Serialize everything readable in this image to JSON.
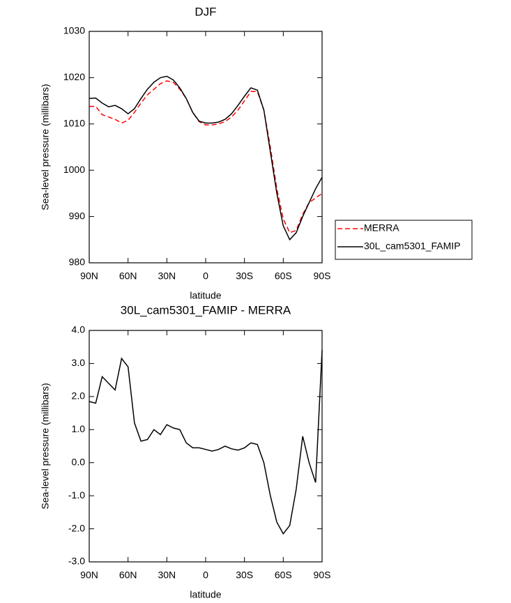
{
  "chart_data": [
    {
      "type": "line",
      "title": "DJF",
      "xlabel": "latitude",
      "ylabel": "Sea-level pressure (millibars)",
      "x": [
        90,
        85,
        80,
        75,
        70,
        65,
        60,
        55,
        50,
        45,
        40,
        35,
        30,
        25,
        20,
        15,
        10,
        5,
        0,
        -5,
        -10,
        -15,
        -20,
        -25,
        -30,
        -35,
        -40,
        -45,
        -50,
        -55,
        -60,
        -65,
        -70,
        -75,
        -80,
        -85,
        -90
      ],
      "series": [
        {
          "name": "MERRA",
          "color": "#ff0000",
          "linestyle": "dashed",
          "values": [
            1013.8,
            1013.8,
            1012,
            1011.5,
            1011,
            1010.2,
            1010.8,
            1012.5,
            1014.5,
            1016.3,
            1017.5,
            1018.7,
            1019.3,
            1019,
            1017.5,
            1015.5,
            1012.5,
            1010.5,
            1009.8,
            1009.8,
            1010,
            1010.5,
            1011.5,
            1013,
            1015,
            1017,
            1017,
            1013,
            1005,
            996,
            989.5,
            986.5,
            987,
            990.5,
            993,
            994,
            995
          ]
        },
        {
          "name": "30L_cam5301_FAMIP",
          "color": "#000000",
          "linestyle": "solid",
          "values": [
            1015.5,
            1015.6,
            1014.5,
            1013.7,
            1014,
            1013.3,
            1012.2,
            1013.3,
            1015.5,
            1017.5,
            1019,
            1020,
            1020.3,
            1019.5,
            1017.8,
            1015.5,
            1012.5,
            1010.6,
            1010.2,
            1010.2,
            1010.4,
            1011,
            1012.2,
            1014,
            1016,
            1017.8,
            1017.3,
            1013,
            1004,
            995,
            988,
            985,
            986.5,
            990,
            993,
            996,
            998.5
          ]
        }
      ],
      "xlim": [
        90,
        -90
      ],
      "xticks": [
        {
          "value": 90,
          "label": "90N"
        },
        {
          "value": 60,
          "label": "60N"
        },
        {
          "value": 30,
          "label": "30N"
        },
        0,
        {
          "value": -30,
          "label": "30S"
        },
        {
          "value": -60,
          "label": "60S"
        },
        {
          "value": -90,
          "label": "90S"
        }
      ],
      "ylim": [
        980,
        1030
      ],
      "yticks": [
        980,
        990,
        1000,
        1010,
        1020,
        1030
      ],
      "legend": "right"
    },
    {
      "type": "line",
      "title": "30L_cam5301_FAMIP - MERRA",
      "xlabel": "latitude",
      "ylabel": "Sea-level pressure (millibars)",
      "x": [
        90,
        85,
        80,
        75,
        70,
        65,
        60,
        55,
        50,
        45,
        40,
        35,
        30,
        25,
        20,
        15,
        10,
        5,
        0,
        -5,
        -10,
        -15,
        -20,
        -25,
        -30,
        -35,
        -40,
        -45,
        -50,
        -55,
        -60,
        -65,
        -70,
        -75,
        -80,
        -85,
        -90
      ],
      "color": "#000000",
      "values": [
        1.85,
        1.8,
        2.6,
        2.4,
        2.2,
        3.15,
        2.9,
        1.2,
        0.65,
        0.7,
        1.0,
        0.85,
        1.15,
        1.05,
        1.0,
        0.6,
        0.45,
        0.45,
        0.4,
        0.35,
        0.4,
        0.5,
        0.42,
        0.38,
        0.45,
        0.6,
        0.55,
        0.0,
        -1.0,
        -1.8,
        -2.15,
        -1.9,
        -0.8,
        0.8,
        0.0,
        -0.6,
        3.4
      ],
      "xlim": [
        90,
        -90
      ],
      "xticks": [
        {
          "value": 90,
          "label": "90N"
        },
        {
          "value": 60,
          "label": "60N"
        },
        {
          "value": 30,
          "label": "30N"
        },
        0,
        {
          "value": -30,
          "label": "30S"
        },
        {
          "value": -60,
          "label": "60S"
        },
        {
          "value": -90,
          "label": "90S"
        }
      ],
      "ylim": [
        -3,
        4
      ],
      "yticks": [
        {
          "value": -3,
          "label": "-3.0"
        },
        {
          "value": -2,
          "label": "-2.0"
        },
        {
          "value": -1,
          "label": "-1.0"
        },
        {
          "value": 0,
          "label": "0.0"
        },
        {
          "value": 1,
          "label": "1.0"
        },
        {
          "value": 2,
          "label": "2.0"
        },
        {
          "value": 3,
          "label": "3.0"
        },
        {
          "value": 4,
          "label": "4.0"
        }
      ]
    }
  ]
}
